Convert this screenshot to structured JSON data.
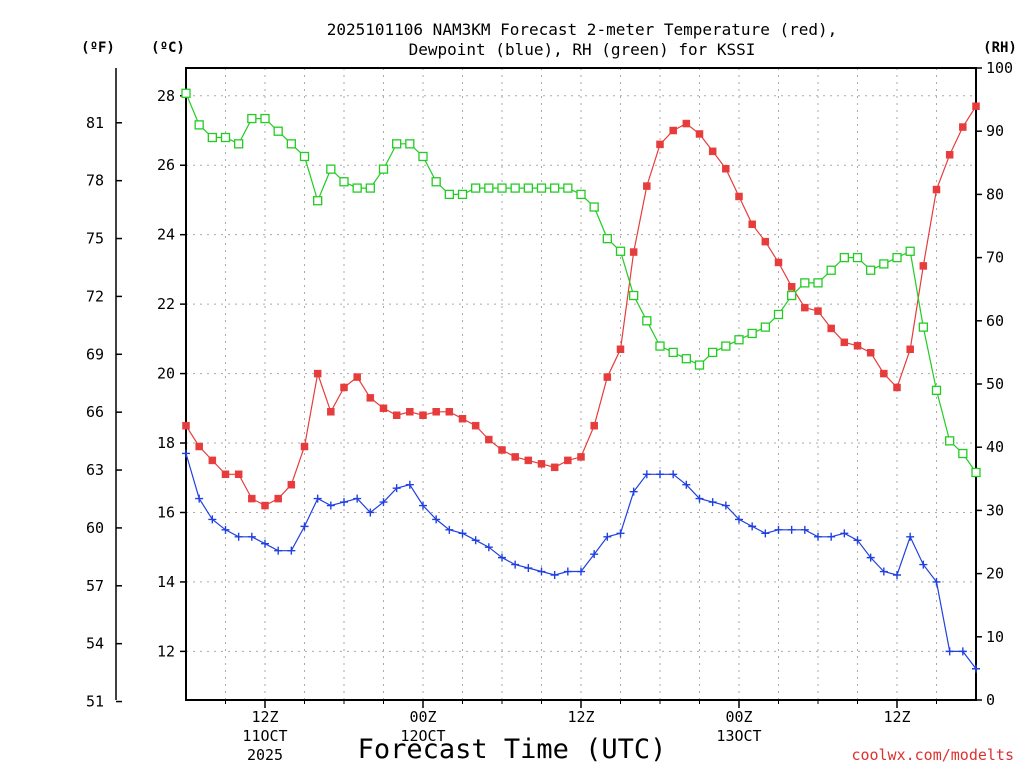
{
  "chart_data": {
    "type": "line",
    "title_line1": "2025101106 NAM3KM Forecast 2-meter Temperature (red),",
    "title_line2": "Dewpoint (blue), RH (green) for KSSI",
    "xlabel": "Forecast Time (UTC)",
    "credit": "coolwx.com/modelts",
    "left_unit_f": "(ºF)",
    "left_unit_c": "(ºC)",
    "right_unit": "(RH)",
    "y_celsius": {
      "range": [
        10.6,
        28.8
      ],
      "ticks": [
        "12",
        "14",
        "16",
        "18",
        "20",
        "22",
        "24",
        "26",
        "28"
      ]
    },
    "y_fahrenheit": {
      "ticks": [
        "51",
        "54",
        "57",
        "60",
        "63",
        "66",
        "69",
        "72",
        "75",
        "78",
        "81"
      ]
    },
    "y_rh": {
      "range": [
        0,
        100
      ],
      "ticks": [
        "0",
        "10",
        "20",
        "30",
        "40",
        "50",
        "60",
        "70",
        "80",
        "90",
        "100"
      ]
    },
    "x_range_hours": [
      0,
      60
    ],
    "x_ticks": [
      {
        "hour": 6,
        "label": "12Z",
        "sub1": "11OCT",
        "sub2": "2025"
      },
      {
        "hour": 18,
        "label": "00Z",
        "sub1": "12OCT",
        "sub2": ""
      },
      {
        "hour": 30,
        "label": "12Z",
        "sub1": "",
        "sub2": ""
      },
      {
        "hour": 42,
        "label": "00Z",
        "sub1": "13OCT",
        "sub2": ""
      },
      {
        "hour": 54,
        "label": "12Z",
        "sub1": "",
        "sub2": ""
      }
    ],
    "series": [
      {
        "name": "2-meter Temperature (°C)",
        "axis": "celsius",
        "color": "#e63c3c",
        "marker": "filled-square",
        "values": [
          18.5,
          17.9,
          17.5,
          17.1,
          17.1,
          16.4,
          16.2,
          16.4,
          16.8,
          17.9,
          20.0,
          18.9,
          19.6,
          19.9,
          19.3,
          19.0,
          18.8,
          18.9,
          18.8,
          18.9,
          18.9,
          18.7,
          18.5,
          18.1,
          17.8,
          17.6,
          17.5,
          17.4,
          17.3,
          17.5,
          17.6,
          18.5,
          19.9,
          20.7,
          23.5,
          25.4,
          26.6,
          27.0,
          27.2,
          26.9,
          26.4,
          25.9,
          25.1,
          24.3,
          23.8,
          23.2,
          22.5,
          21.9,
          21.8,
          21.3,
          20.9,
          20.8,
          20.6,
          20.0,
          19.6,
          20.7,
          23.1,
          25.3,
          26.3,
          27.1,
          27.7
        ]
      },
      {
        "name": "Dewpoint (°C)",
        "axis": "celsius",
        "color": "#2040e0",
        "marker": "plus",
        "values": [
          17.7,
          16.4,
          15.8,
          15.5,
          15.3,
          15.3,
          15.1,
          14.9,
          14.9,
          15.6,
          16.4,
          16.2,
          16.3,
          16.4,
          16.0,
          16.3,
          16.7,
          16.8,
          16.2,
          15.8,
          15.5,
          15.4,
          15.2,
          15.0,
          14.7,
          14.5,
          14.4,
          14.3,
          14.2,
          14.3,
          14.3,
          14.8,
          15.3,
          15.4,
          16.6,
          17.1,
          17.1,
          17.1,
          16.8,
          16.4,
          16.3,
          16.2,
          15.8,
          15.6,
          15.4,
          15.5,
          15.5,
          15.5,
          15.3,
          15.3,
          15.4,
          15.2,
          14.7,
          14.3,
          14.2,
          15.3,
          14.5,
          14.0,
          12.0,
          12.0,
          11.5
        ]
      },
      {
        "name": "RH (%)",
        "axis": "rh",
        "color": "#22cc22",
        "marker": "open-square",
        "values": [
          96,
          91,
          89,
          89,
          88,
          92,
          92,
          90,
          88,
          86,
          79,
          84,
          82,
          81,
          81,
          84,
          88,
          88,
          86,
          82,
          80,
          80,
          81,
          81,
          81,
          81,
          81,
          81,
          81,
          81,
          80,
          78,
          73,
          71,
          64,
          60,
          56,
          55,
          54,
          53,
          55,
          56,
          57,
          58,
          59,
          61,
          64,
          66,
          66,
          68,
          70,
          70,
          68,
          69,
          70,
          71,
          59,
          49,
          41,
          39,
          36
        ]
      }
    ]
  }
}
